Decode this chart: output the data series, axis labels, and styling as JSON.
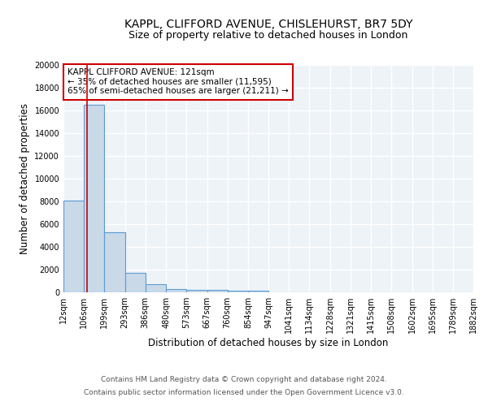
{
  "title": "KAPPL, CLIFFORD AVENUE, CHISLEHURST, BR7 5DY",
  "subtitle": "Size of property relative to detached houses in London",
  "xlabel": "Distribution of detached houses by size in London",
  "ylabel": "Number of detached properties",
  "bin_labels": [
    "12sqm",
    "106sqm",
    "199sqm",
    "293sqm",
    "386sqm",
    "480sqm",
    "573sqm",
    "667sqm",
    "760sqm",
    "854sqm",
    "947sqm",
    "1041sqm",
    "1134sqm",
    "1228sqm",
    "1321sqm",
    "1415sqm",
    "1508sqm",
    "1602sqm",
    "1695sqm",
    "1789sqm",
    "1882sqm"
  ],
  "bar_heights": [
    8100,
    16500,
    5300,
    1750,
    700,
    320,
    220,
    190,
    160,
    140,
    0,
    0,
    0,
    0,
    0,
    0,
    0,
    0,
    0,
    0
  ],
  "bar_color": "#c9d9e8",
  "bar_edge_color": "#5b9bd5",
  "background_color": "#eef3f8",
  "grid_color": "#ffffff",
  "annotation_text": "KAPPL CLIFFORD AVENUE: 121sqm\n← 35% of detached houses are smaller (11,595)\n65% of semi-detached houses are larger (21,211) →",
  "annotation_box_color": "#ffffff",
  "annotation_box_edge_color": "#cc0000",
  "property_line_x": 121,
  "bin_edges": [
    12,
    106,
    199,
    293,
    386,
    480,
    573,
    667,
    760,
    854,
    947,
    1041,
    1134,
    1228,
    1321,
    1415,
    1508,
    1602,
    1695,
    1789,
    1882
  ],
  "ylim": [
    0,
    20000
  ],
  "yticks": [
    0,
    2000,
    4000,
    6000,
    8000,
    10000,
    12000,
    14000,
    16000,
    18000,
    20000
  ],
  "footnote1": "Contains HM Land Registry data © Crown copyright and database right 2024.",
  "footnote2": "Contains public sector information licensed under the Open Government Licence v3.0.",
  "title_fontsize": 10,
  "subtitle_fontsize": 9,
  "xlabel_fontsize": 8.5,
  "ylabel_fontsize": 8.5,
  "tick_fontsize": 7,
  "footnote_fontsize": 6.5,
  "annotation_fontsize": 7.5
}
